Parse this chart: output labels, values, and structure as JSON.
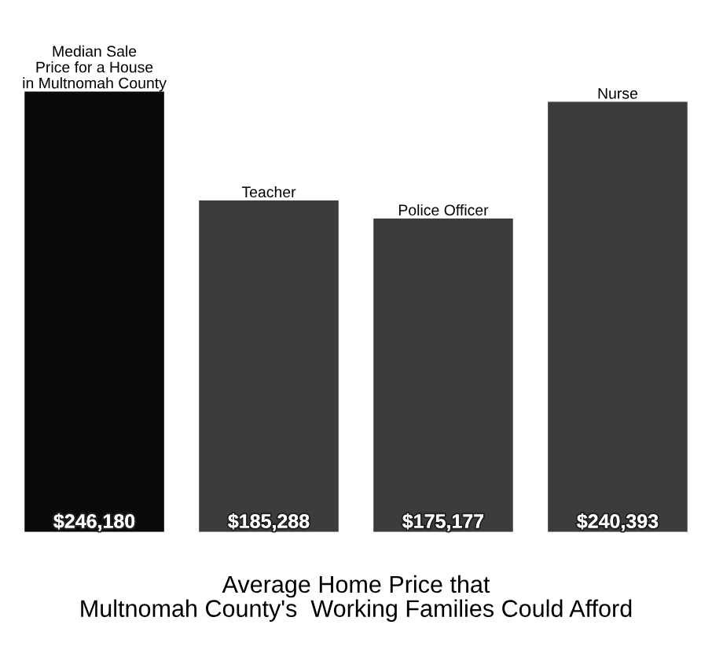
{
  "chart_data": {
    "type": "bar",
    "categories": [
      "Median Sale\nPrice for a House\nin Multnomah County",
      "Teacher",
      "Police Officer",
      "Nurse"
    ],
    "values": [
      246180,
      185288,
      175177,
      240393
    ],
    "value_labels": [
      "$246,180",
      "$185,288",
      "$175,177",
      "$240,393"
    ],
    "colors": [
      "#0a0a0a",
      "#3c3c3c",
      "#3c3c3c",
      "#3c3c3c"
    ],
    "xlabel": "Average Home Price that\nMultnomah County's  Working Families Could Afford"
  }
}
